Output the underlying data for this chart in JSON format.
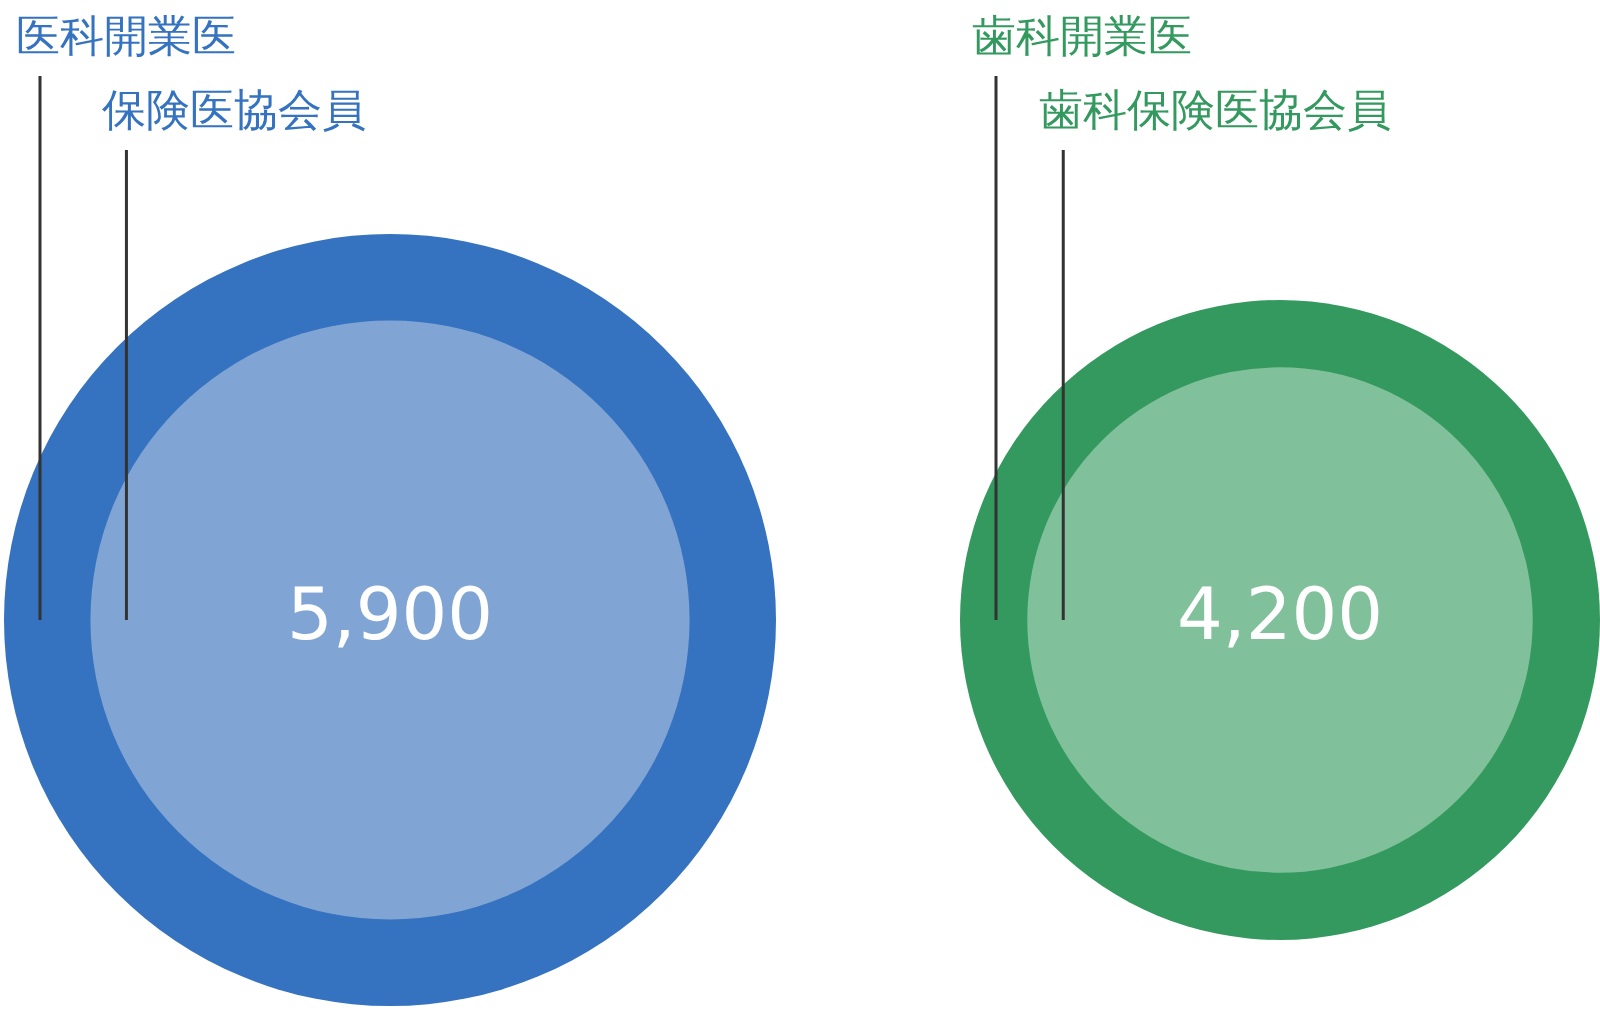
{
  "chart_data": [
    {
      "type": "other",
      "categories": [
        "医科開業医",
        "保険医協会員"
      ],
      "values": [
        null,
        5900
      ],
      "value_labels": [
        null,
        "5,900"
      ],
      "colors": [
        "#3572bf",
        "#80a5d5"
      ]
    },
    {
      "type": "other",
      "categories": [
        "歯科開業医",
        "歯科保険医協会員"
      ],
      "values": [
        null,
        4200
      ],
      "value_labels": [
        null,
        "4,200"
      ],
      "colors": [
        "#33995e",
        "#80c09a"
      ]
    }
  ]
}
